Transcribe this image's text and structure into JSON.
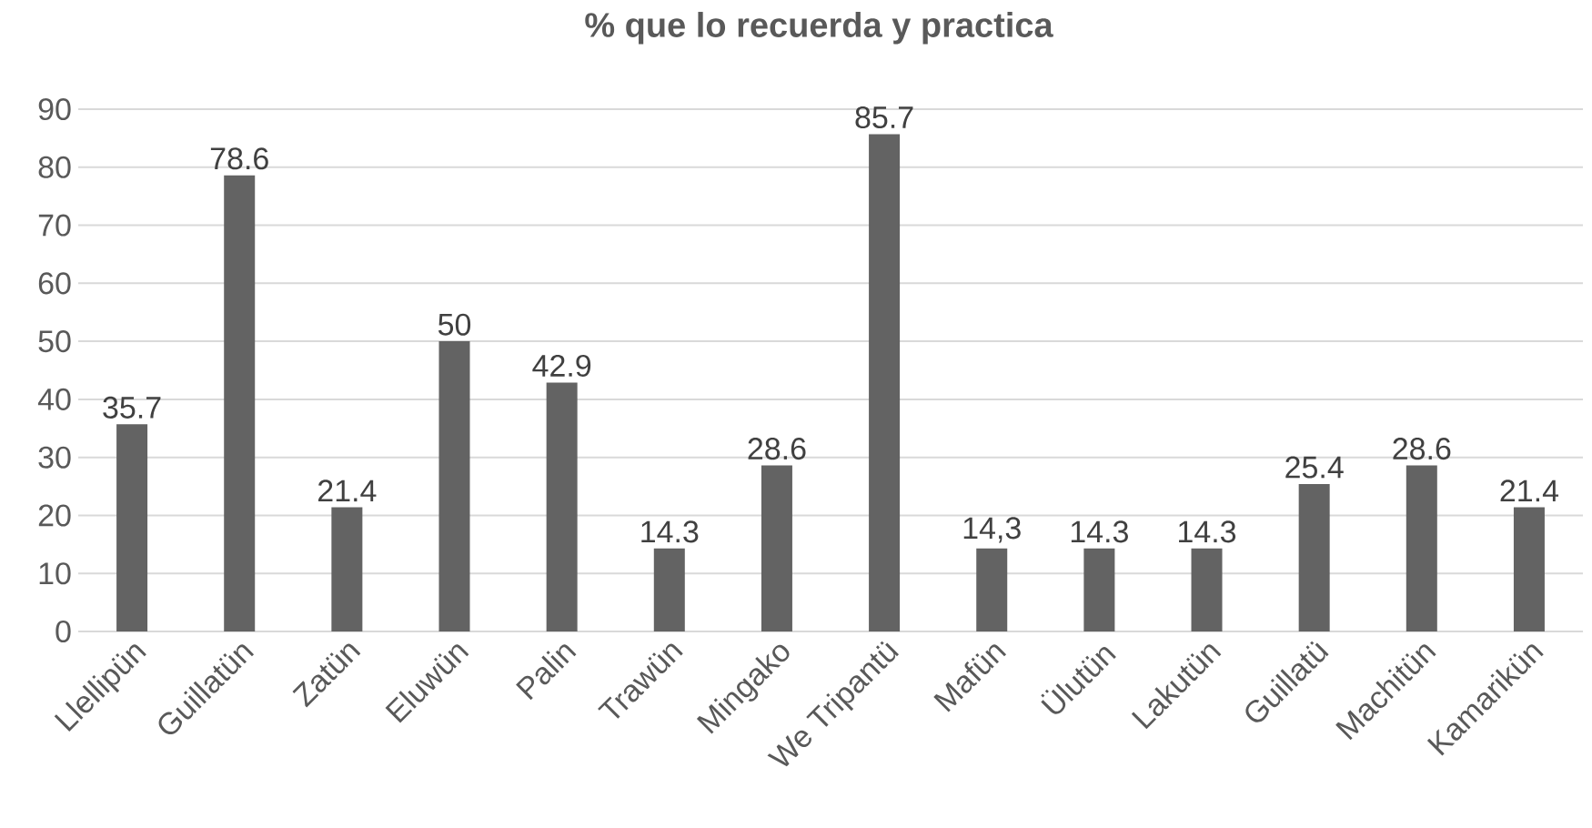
{
  "chart_data": {
    "type": "bar",
    "title": "% que lo recuerda y practica",
    "categories": [
      "Llellipün",
      "Guillatün",
      "Zatün",
      "Eluwün",
      "Palin",
      "Trawün",
      "Mingako",
      "We Tripantü",
      "Mafün",
      "Ülutün",
      "Lakutün",
      "Guillatü",
      "Machitün",
      "Kamarikün"
    ],
    "values": [
      35.7,
      78.6,
      21.4,
      50,
      42.9,
      14.3,
      28.6,
      85.7,
      14.3,
      14.3,
      14.3,
      25.4,
      28.6,
      21.4
    ],
    "value_labels": [
      "35.7",
      "78.6",
      "21.4",
      "50",
      "42.9",
      "14.3",
      "28.6",
      "85.7",
      "14,3",
      "14.3",
      "14.3",
      "25.4",
      "28.6",
      "21.4"
    ],
    "color": "#636363",
    "ylim": [
      0,
      90
    ],
    "yticks": [
      0,
      10,
      20,
      30,
      40,
      50,
      60,
      70,
      80,
      90
    ],
    "grid": "y"
  }
}
